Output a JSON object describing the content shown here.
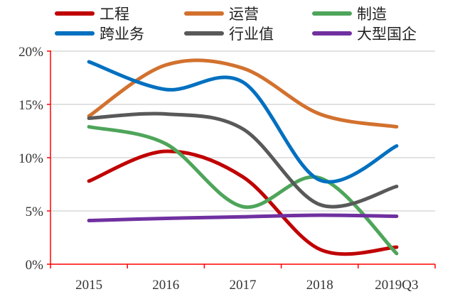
{
  "chart_data": {
    "type": "line",
    "smooth": true,
    "categories": [
      "2015",
      "2016",
      "2017",
      "2018",
      "2019Q3"
    ],
    "yticks": [
      "0%",
      "5%",
      "10%",
      "15%",
      "20%"
    ],
    "ylim": [
      0,
      20
    ],
    "grid": true,
    "legend": "top",
    "axis_color": "#ff0000",
    "series": [
      {
        "name": "工程",
        "color": "#c00000",
        "values": [
          7.8,
          10.6,
          8.2,
          1.4,
          1.6
        ]
      },
      {
        "name": "运营",
        "color": "#d2712e",
        "values": [
          13.9,
          18.7,
          18.4,
          14.1,
          12.9
        ]
      },
      {
        "name": "制造",
        "color": "#4ea55a",
        "values": [
          12.9,
          11.3,
          5.4,
          8.1,
          1.0
        ]
      },
      {
        "name": "跨业务",
        "color": "#0070c0",
        "values": [
          19.0,
          16.4,
          17.1,
          7.9,
          11.1
        ]
      },
      {
        "name": "行业值",
        "color": "#595959",
        "values": [
          13.7,
          14.1,
          12.7,
          5.6,
          7.3
        ]
      },
      {
        "name": "大型国企",
        "color": "#7030a0",
        "values": [
          4.1,
          4.3,
          4.45,
          4.6,
          4.5
        ]
      }
    ]
  }
}
